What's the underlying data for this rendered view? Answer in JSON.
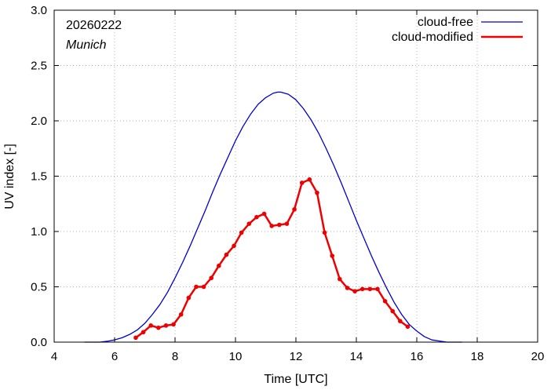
{
  "chart_data": {
    "type": "line",
    "title": "",
    "xlabel": "Time  [UTC]",
    "ylabel": "UV index  [-]",
    "xlim": [
      4,
      20
    ],
    "ylim": [
      0,
      3.0
    ],
    "xticks": [
      4,
      6,
      8,
      10,
      12,
      14,
      16,
      18,
      20
    ],
    "xtick_labels": [
      "4",
      "6",
      "8",
      "10",
      "12",
      "14",
      "16",
      "18",
      "20"
    ],
    "yticks": [
      0,
      0.5,
      1.0,
      1.5,
      2.0,
      2.5,
      3.0
    ],
    "ytick_labels": [
      "0.0",
      "0.5",
      "1.0",
      "1.5",
      "2.0",
      "2.5",
      "3.0"
    ],
    "annotations": {
      "date": "20260222",
      "location": "Munich"
    },
    "legend": {
      "position": "top-right",
      "entries": [
        "cloud-free",
        "cloud-modified"
      ]
    },
    "series": [
      {
        "name": "cloud-free",
        "color": "#0000cc",
        "markers": false,
        "x": [
          5.0,
          5.5,
          5.8,
          6.0,
          6.25,
          6.5,
          6.75,
          7.0,
          7.25,
          7.5,
          7.75,
          8.0,
          8.25,
          8.5,
          8.75,
          9.0,
          9.25,
          9.5,
          9.75,
          10.0,
          10.25,
          10.5,
          10.75,
          11.0,
          11.25,
          11.4,
          11.5,
          11.75,
          12.0,
          12.25,
          12.5,
          12.75,
          13.0,
          13.25,
          13.5,
          13.75,
          14.0,
          14.25,
          14.5,
          14.75,
          15.0,
          15.25,
          15.5,
          15.75,
          16.0,
          16.25,
          16.5,
          16.75,
          17.0,
          17.2,
          17.5
        ],
        "y": [
          0.0,
          0.0,
          0.01,
          0.02,
          0.04,
          0.07,
          0.11,
          0.17,
          0.25,
          0.34,
          0.45,
          0.58,
          0.72,
          0.87,
          1.03,
          1.19,
          1.36,
          1.52,
          1.67,
          1.82,
          1.95,
          2.06,
          2.15,
          2.21,
          2.25,
          2.26,
          2.26,
          2.24,
          2.19,
          2.11,
          2.01,
          1.89,
          1.75,
          1.6,
          1.44,
          1.27,
          1.1,
          0.94,
          0.78,
          0.63,
          0.49,
          0.36,
          0.25,
          0.16,
          0.1,
          0.05,
          0.02,
          0.01,
          0.0,
          0.0,
          0.0
        ]
      },
      {
        "name": "cloud-modified",
        "color": "#ee0000",
        "markers": true,
        "x": [
          6.7,
          6.95,
          7.2,
          7.45,
          7.7,
          7.95,
          8.2,
          8.45,
          8.7,
          8.95,
          9.2,
          9.45,
          9.7,
          9.95,
          10.2,
          10.45,
          10.7,
          10.95,
          11.2,
          11.45,
          11.7,
          11.95,
          12.2,
          12.45,
          12.7,
          12.95,
          13.2,
          13.45,
          13.7,
          13.95,
          14.2,
          14.45,
          14.7,
          14.95,
          15.2,
          15.45,
          15.7
        ],
        "y": [
          0.04,
          0.09,
          0.15,
          0.13,
          0.15,
          0.16,
          0.25,
          0.4,
          0.5,
          0.5,
          0.58,
          0.69,
          0.79,
          0.87,
          0.99,
          1.07,
          1.13,
          1.16,
          1.05,
          1.06,
          1.07,
          1.2,
          1.44,
          1.47,
          1.35,
          0.99,
          0.78,
          0.57,
          0.49,
          0.46,
          0.48,
          0.48,
          0.48,
          0.37,
          0.28,
          0.19,
          0.14
        ]
      }
    ]
  }
}
